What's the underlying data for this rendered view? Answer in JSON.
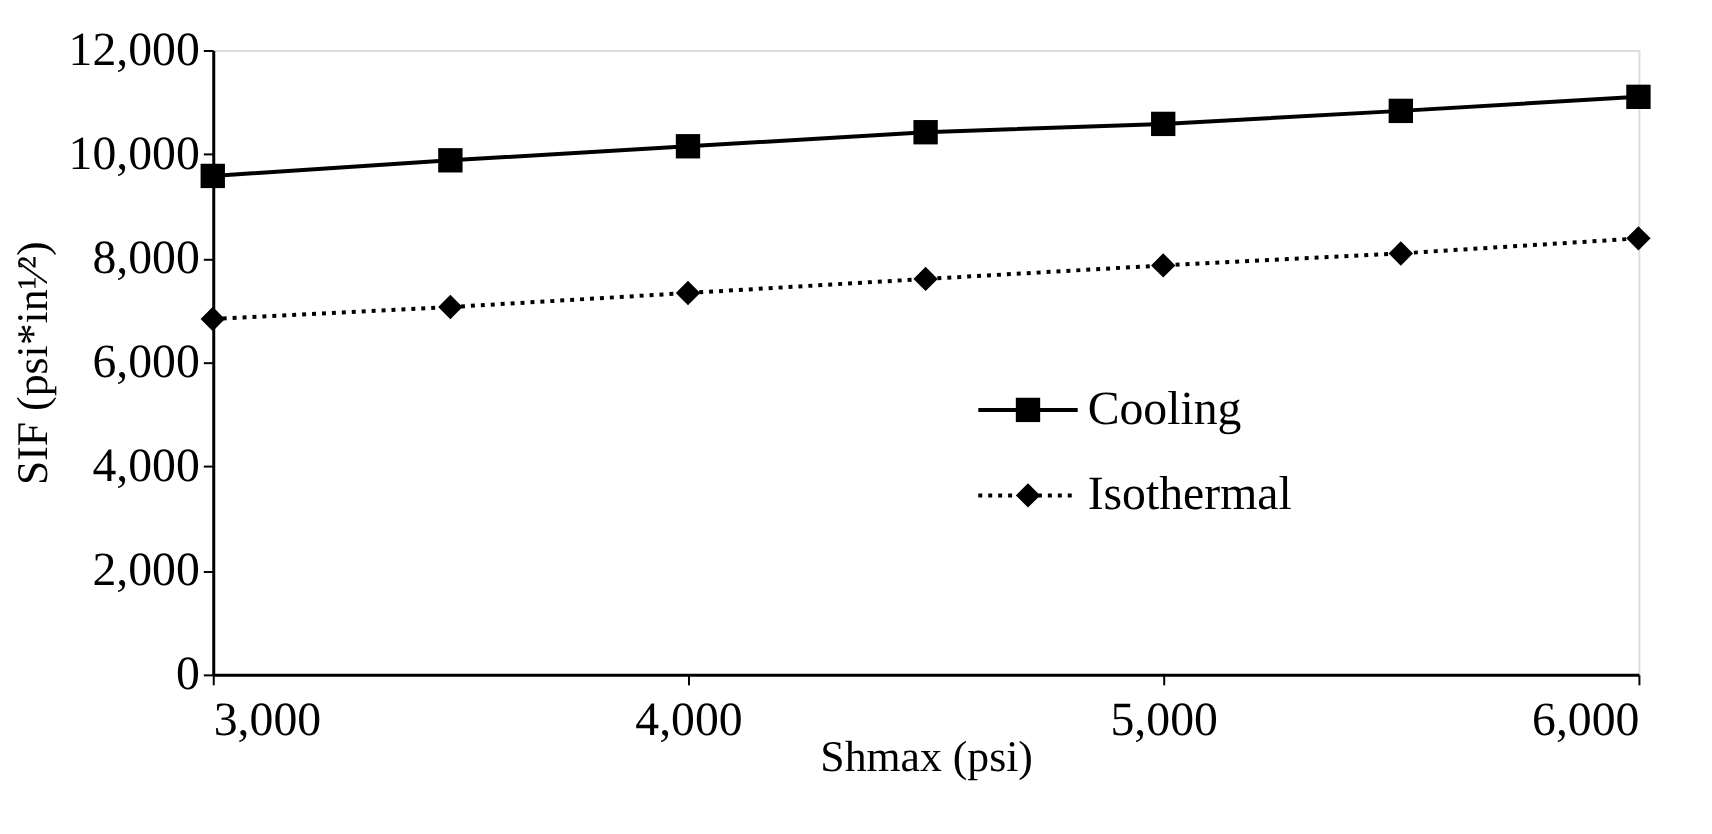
{
  "chart_data": {
    "type": "line",
    "xlabel": "Shmax (psi)",
    "ylabel": "SIF (psi*in¹⁄²)",
    "x": [
      3000,
      3500,
      4000,
      4500,
      5000,
      5500,
      6000
    ],
    "series": [
      {
        "name": "Cooling",
        "color": "#000000",
        "marker": "square",
        "line_style": "solid",
        "values": [
          9580,
          9880,
          10150,
          10420,
          10580,
          10830,
          11100
        ]
      },
      {
        "name": "Isothermal",
        "color": "#000000",
        "marker": "diamond",
        "line_style": "dotted",
        "values": [
          6830,
          7060,
          7330,
          7600,
          7860,
          8090,
          8380
        ]
      }
    ],
    "xlim": [
      3000,
      6000
    ],
    "xticks": [
      {
        "value": 3000,
        "label": "3,000"
      },
      {
        "value": 4000,
        "label": "4,000"
      },
      {
        "value": 5000,
        "label": "5,000"
      },
      {
        "value": 6000,
        "label": "6,000"
      }
    ],
    "ylim": [
      0,
      12000
    ],
    "yticks": [
      0,
      {
        "value": 2000,
        "label": "2,000"
      },
      {
        "value": 4000,
        "label": "4,000"
      },
      {
        "value": 6000,
        "label": "6,000"
      },
      {
        "value": 8000,
        "label": "8,000"
      },
      {
        "value": 10000,
        "label": "10,000"
      },
      {
        "value": 12000,
        "label": "12,000"
      }
    ],
    "grid": false,
    "legend": "right"
  }
}
